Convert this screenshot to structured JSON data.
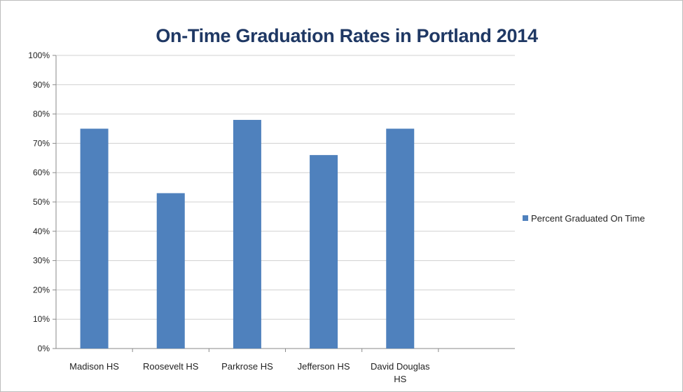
{
  "chart_data": {
    "type": "bar",
    "title": "On-Time Graduation Rates in Portland 2014",
    "categories": [
      "Madison HS",
      "Roosevelt HS",
      "Parkrose HS",
      "Jefferson HS",
      "David Douglas HS"
    ],
    "series": [
      {
        "name": "Percent Graduated On Time",
        "values": [
          75,
          53,
          78,
          66,
          75
        ],
        "color": "#4f81bd"
      }
    ],
    "ylim": [
      0,
      100
    ],
    "yticks": [
      "0%",
      "10%",
      "20%",
      "30%",
      "40%",
      "50%",
      "60%",
      "70%",
      "80%",
      "90%",
      "100%"
    ],
    "grid": true,
    "legend_position": "right"
  }
}
